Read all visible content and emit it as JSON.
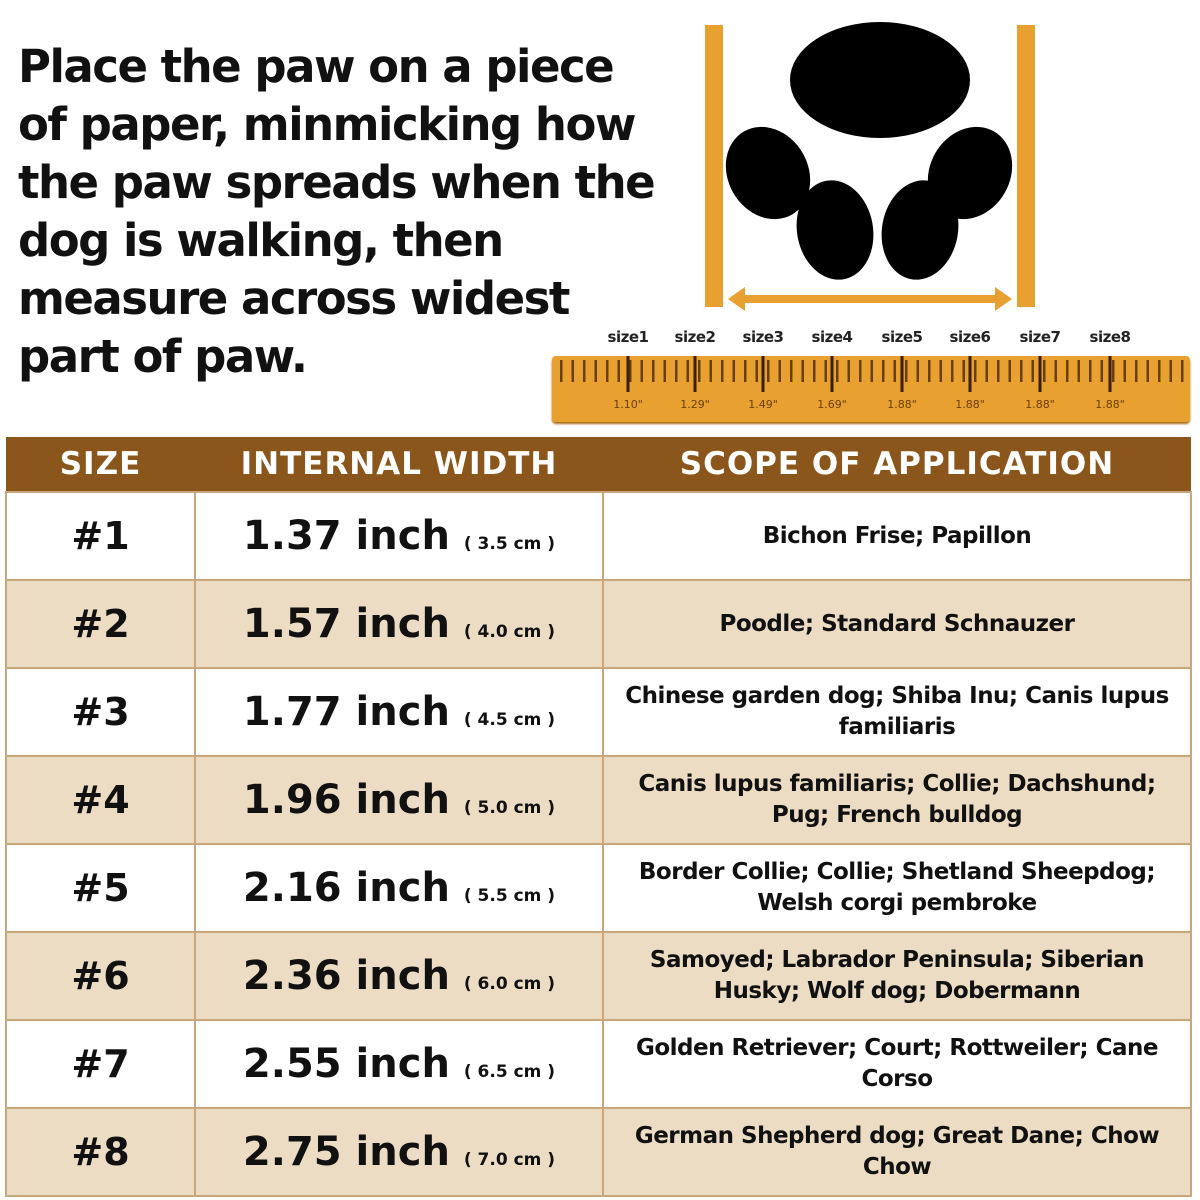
{
  "instruction": "Place the paw on a piece of paper, minmicking how the paw spreads when the dog is walking, then measure across widest part of paw.",
  "ruler": {
    "sizes": [
      "size1",
      "size2",
      "size3",
      "size4",
      "size5",
      "size6",
      "size7",
      "size8"
    ],
    "values": [
      "1.10\"",
      "1.29\"",
      "1.49\"",
      "1.69\"",
      "1.88\"",
      "1.88\"",
      "1.88\"",
      "1.88\""
    ]
  },
  "colors": {
    "header": "#8a561c",
    "ruler": "#e8a030",
    "alt_row": "#ecdcc4",
    "paw": "#000000"
  },
  "table": {
    "headers": [
      "SIZE",
      "INTERNAL WIDTH",
      "SCOPE OF APPLICATION"
    ],
    "rows": [
      {
        "size": "#1",
        "width": "1.37 inch",
        "cm": "( 3.5 cm )",
        "scope": "Bichon Frise; Papillon"
      },
      {
        "size": "#2",
        "width": "1.57 inch",
        "cm": "( 4.0 cm )",
        "scope": "Poodle; Standard Schnauzer"
      },
      {
        "size": "#3",
        "width": "1.77 inch",
        "cm": "( 4.5 cm )",
        "scope": "Chinese garden dog; Shiba Inu; Canis lupus familiaris"
      },
      {
        "size": "#4",
        "width": "1.96 inch",
        "cm": "( 5.0 cm )",
        "scope": "Canis lupus familiaris; Collie; Dachshund; Pug; French bulldog"
      },
      {
        "size": "#5",
        "width": "2.16 inch",
        "cm": "( 5.5 cm )",
        "scope": "Border Collie; Collie; Shetland Sheepdog; Welsh corgi pembroke"
      },
      {
        "size": "#6",
        "width": "2.36 inch",
        "cm": "( 6.0 cm )",
        "scope": "Samoyed; Labrador Peninsula; Siberian Husky; Wolf dog; Dobermann"
      },
      {
        "size": "#7",
        "width": "2.55 inch",
        "cm": "( 6.5 cm )",
        "scope": "Golden Retriever; Court; Rottweiler; Cane Corso"
      },
      {
        "size": "#8",
        "width": "2.75 inch",
        "cm": "( 7.0 cm )",
        "scope": "German Shepherd dog; Great Dane; Chow Chow"
      }
    ]
  }
}
